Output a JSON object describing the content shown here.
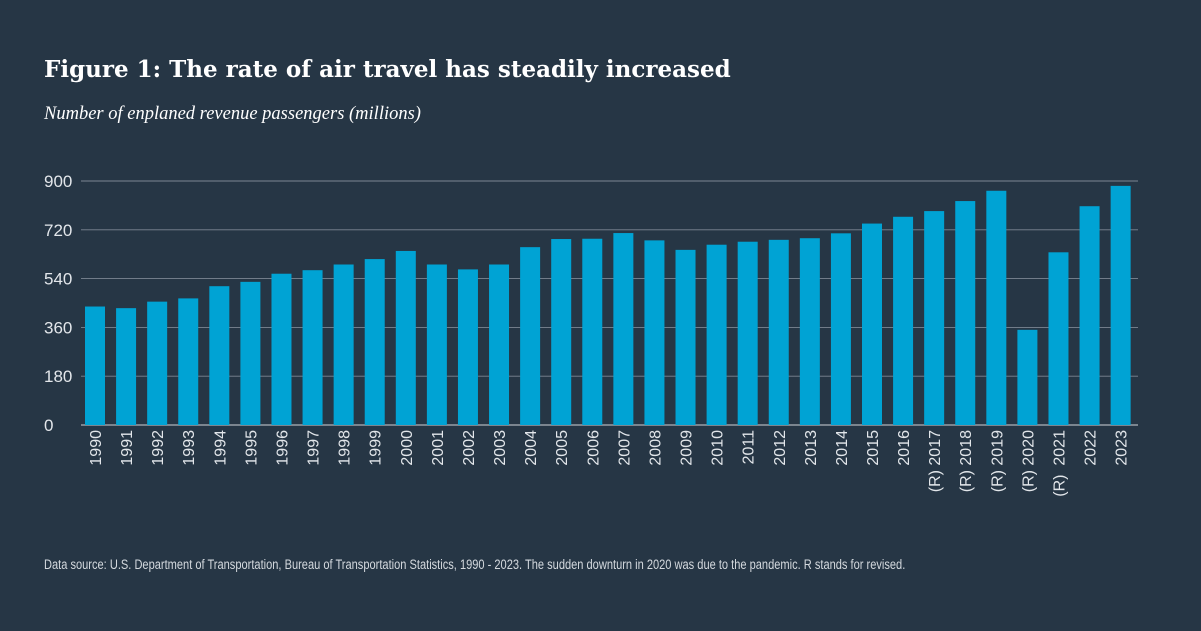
{
  "chart_data": {
    "type": "bar",
    "title": "Figure 1: The rate of air travel has steadily increased",
    "subtitle": "Number of enplaned revenue passengers (millions)",
    "xlabel": "",
    "ylabel": "",
    "ylim": [
      0,
      900
    ],
    "yticks": [
      0,
      180,
      360,
      540,
      720,
      900
    ],
    "grid": true,
    "categories": [
      "1990",
      "1991",
      "1992",
      "1993",
      "1994",
      "1995",
      "1996",
      "1997",
      "1998",
      "1999",
      "2000",
      "2001",
      "2002",
      "2003",
      "2004",
      "2005",
      "2006",
      "2007",
      "2008",
      "2009",
      "2010",
      "2011",
      "2012",
      "2013",
      "2014",
      "2015",
      "2016",
      "(R) 2017",
      "(R) 2018",
      "(R) 2019",
      "(R) 2020",
      "(R)  2021",
      "2022",
      "2023"
    ],
    "values": [
      437,
      431,
      455,
      467,
      512,
      528,
      558,
      571,
      592,
      612,
      642,
      592,
      574,
      592,
      656,
      686,
      687,
      708,
      681,
      646,
      665,
      676,
      683,
      689,
      707,
      743,
      768,
      789,
      826,
      864,
      351,
      637,
      807,
      882
    ],
    "colors": {
      "bar": "#00a3d4",
      "grid": "#7c8793",
      "axis": "#aeb5bc",
      "tick_text": "#e2e6ea"
    }
  },
  "footnote": "Data source: U.S. Department of Transportation, Bureau of Transportation Statistics, 1990 - 2023. The sudden downturn in 2020 was due to the pandemic. R stands for revised."
}
